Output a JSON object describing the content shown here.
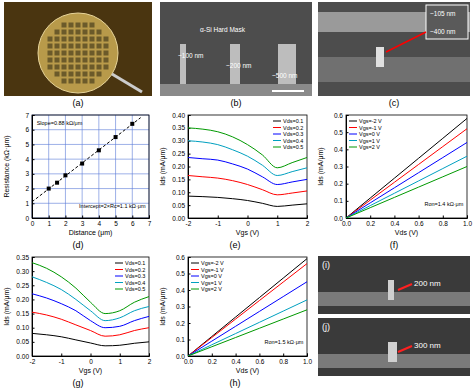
{
  "images": [
    {
      "caption": "(a)"
    },
    {
      "caption": "(b)",
      "annotations": [
        "α-Si Hard Mask",
        "~100 nm",
        "~200 nm",
        "~500 nm"
      ]
    },
    {
      "caption": "(c)",
      "annotations": [
        "~105 nm",
        "~400 nm"
      ]
    },
    {
      "caption": "(i)",
      "annotations": [
        "200 nm"
      ]
    },
    {
      "caption": "(j)",
      "annotations": [
        "300 nm"
      ]
    }
  ],
  "chart_data": [
    {
      "type": "scatter",
      "caption": "(d)",
      "x_label": "Distance (μm)",
      "y_label": "Resistance (kΩ·μm)",
      "xlim": [
        0,
        7
      ],
      "ylim": [
        0,
        7
      ],
      "xticks": [
        0,
        1,
        2,
        3,
        4,
        5,
        6,
        7
      ],
      "yticks": [
        0,
        1,
        2,
        3,
        4,
        5,
        6,
        7
      ],
      "grid": true,
      "annotations": [
        "Slope=0.88 kΩ/μm",
        "Intercept=2×Rc=1.1 kΩ·μm"
      ],
      "series": [
        {
          "type": "scatter",
          "marker": "square",
          "color": "#000000",
          "x": [
            1,
            1.5,
            2,
            3,
            4,
            5,
            6
          ],
          "values": [
            2.0,
            2.4,
            2.9,
            3.7,
            4.6,
            5.5,
            6.4
          ]
        },
        {
          "type": "line",
          "line_style": "dashed",
          "color": "#000000",
          "x": [
            0,
            6.5
          ],
          "values": [
            1.1,
            6.82
          ]
        }
      ]
    },
    {
      "type": "line",
      "caption": "(e)",
      "x_label": "Vgs (V)",
      "y_label": "Ids (mA/μm)",
      "xlim": [
        -2,
        2
      ],
      "ylim": [
        0,
        0.4
      ],
      "xticks": [
        -2,
        -1,
        0,
        1,
        2
      ],
      "yticks": [
        {
          "value": 0,
          "label": "0.00"
        },
        0.05,
        {
          "value": 0.1,
          "label": "0.10"
        },
        0.15,
        {
          "value": 0.2,
          "label": "0.20"
        },
        0.25,
        {
          "value": 0.3,
          "label": "0.30"
        },
        0.35,
        {
          "value": 0.4,
          "label": "0.40"
        }
      ],
      "legend": "upper right",
      "x": [
        -2,
        -1.5,
        -1,
        -0.5,
        0,
        0.5,
        1,
        1.5,
        2
      ],
      "series": [
        {
          "name": "Vds=0.1",
          "color": "#000000",
          "values": [
            0.085,
            0.083,
            0.08,
            0.075,
            0.068,
            0.057,
            0.045,
            0.05,
            0.055
          ]
        },
        {
          "name": "Vds=0.2",
          "color": "#ff0000",
          "values": [
            0.165,
            0.16,
            0.155,
            0.145,
            0.13,
            0.11,
            0.09,
            0.097,
            0.105
          ]
        },
        {
          "name": "Vds=0.3",
          "color": "#0000ff",
          "values": [
            0.235,
            0.23,
            0.225,
            0.21,
            0.19,
            0.16,
            0.13,
            0.14,
            0.15
          ]
        },
        {
          "name": "Vds=0.4",
          "color": "#00a0c0",
          "values": [
            0.3,
            0.295,
            0.285,
            0.265,
            0.24,
            0.205,
            0.165,
            0.18,
            0.195
          ]
        },
        {
          "name": "Vds=0.5",
          "color": "#009900",
          "values": [
            0.35,
            0.345,
            0.335,
            0.315,
            0.285,
            0.245,
            0.195,
            0.215,
            0.235
          ]
        }
      ]
    },
    {
      "type": "line",
      "caption": "(f)",
      "x_label": "Vds (V)",
      "y_label": "Ids (mA/μm)",
      "xlim": [
        0,
        1
      ],
      "ylim": [
        0,
        0.6
      ],
      "xticks": [
        {
          "value": 0,
          "label": "0.0"
        },
        0.2,
        0.4,
        0.6,
        0.8,
        {
          "value": 1,
          "label": "1.0"
        }
      ],
      "yticks": [
        {
          "value": 0,
          "label": "0.0"
        },
        0.1,
        0.2,
        0.3,
        0.4,
        0.5,
        0.6
      ],
      "legend": "upper left",
      "annotations": [
        "Ron=1.4 kΩ·μm"
      ],
      "x": [
        0,
        0.2,
        0.4,
        0.6,
        0.8,
        1
      ],
      "series": [
        {
          "name": "Vgs=-2 V",
          "color": "#000000",
          "values": [
            0,
            0.116,
            0.232,
            0.348,
            0.464,
            0.58
          ]
        },
        {
          "name": "Vgs=-1 V",
          "color": "#ff0000",
          "values": [
            0,
            0.104,
            0.208,
            0.312,
            0.416,
            0.52
          ]
        },
        {
          "name": "Vgs=0 V",
          "color": "#0000ff",
          "values": [
            0,
            0.088,
            0.176,
            0.264,
            0.352,
            0.44
          ]
        },
        {
          "name": "Vgs=1 V",
          "color": "#00a0c0",
          "values": [
            0,
            0.072,
            0.144,
            0.216,
            0.288,
            0.36
          ]
        },
        {
          "name": "Vgs=2 V",
          "color": "#009900",
          "values": [
            0,
            0.06,
            0.12,
            0.18,
            0.24,
            0.3
          ]
        }
      ]
    },
    {
      "type": "line",
      "caption": "(g)",
      "x_label": "Vgs (V)",
      "y_label": "Ids (mA/μm)",
      "xlim": [
        -2,
        2
      ],
      "ylim": [
        0,
        0.35
      ],
      "xticks": [
        -2,
        -1,
        0,
        1,
        2
      ],
      "yticks": [
        {
          "value": 0,
          "label": "0.00"
        },
        0.05,
        {
          "value": 0.1,
          "label": "0.10"
        },
        0.15,
        {
          "value": 0.2,
          "label": "0.20"
        },
        0.25,
        {
          "value": 0.3,
          "label": "0.30"
        },
        0.35
      ],
      "legend": "upper right",
      "x": [
        -2,
        -1.5,
        -1,
        -0.5,
        0,
        0.5,
        1,
        1.5,
        2
      ],
      "series": [
        {
          "name": "Vds=0.1",
          "color": "#000000",
          "values": [
            0.08,
            0.075,
            0.068,
            0.057,
            0.046,
            0.036,
            0.038,
            0.045,
            0.05
          ]
        },
        {
          "name": "Vds=0.2",
          "color": "#ff0000",
          "values": [
            0.155,
            0.145,
            0.13,
            0.11,
            0.09,
            0.07,
            0.075,
            0.09,
            0.1
          ]
        },
        {
          "name": "Vds=0.3",
          "color": "#0000ff",
          "values": [
            0.22,
            0.205,
            0.185,
            0.16,
            0.125,
            0.1,
            0.105,
            0.125,
            0.14
          ]
        },
        {
          "name": "Vds=0.4",
          "color": "#00a0c0",
          "values": [
            0.28,
            0.26,
            0.235,
            0.2,
            0.16,
            0.125,
            0.135,
            0.16,
            0.175
          ]
        },
        {
          "name": "Vds=0.5",
          "color": "#009900",
          "values": [
            0.33,
            0.31,
            0.28,
            0.24,
            0.19,
            0.15,
            0.16,
            0.19,
            0.21
          ]
        }
      ]
    },
    {
      "type": "line",
      "caption": "(h)",
      "x_label": "Vds (V)",
      "y_label": "Ids (mA/μm)",
      "xlim": [
        0,
        1
      ],
      "ylim": [
        0,
        0.6
      ],
      "xticks": [
        {
          "value": 0,
          "label": "0.0"
        },
        0.2,
        0.4,
        0.6,
        0.8,
        {
          "value": 1,
          "label": "1.0"
        }
      ],
      "yticks": [
        {
          "value": 0,
          "label": "0.0"
        },
        0.1,
        0.2,
        0.3,
        0.4,
        0.5,
        0.6
      ],
      "legend": "upper left",
      "annotations": [
        "Ron=1.5 kΩ·μm"
      ],
      "x": [
        0,
        0.2,
        0.4,
        0.6,
        0.8,
        1
      ],
      "series": [
        {
          "name": "Vgs=-2 V",
          "color": "#000000",
          "values": [
            0,
            0.118,
            0.236,
            0.354,
            0.472,
            0.59
          ]
        },
        {
          "name": "Vgs=-1 V",
          "color": "#ff0000",
          "values": [
            0,
            0.112,
            0.224,
            0.336,
            0.448,
            0.56
          ]
        },
        {
          "name": "Vgs=0 V",
          "color": "#0000ff",
          "values": [
            0,
            0.09,
            0.18,
            0.27,
            0.36,
            0.45
          ]
        },
        {
          "name": "Vgs=1 V",
          "color": "#00a0c0",
          "values": [
            0,
            0.068,
            0.136,
            0.204,
            0.272,
            0.34
          ]
        },
        {
          "name": "Vgs=2 V",
          "color": "#009900",
          "values": [
            0,
            0.056,
            0.112,
            0.168,
            0.224,
            0.28
          ]
        }
      ]
    }
  ]
}
